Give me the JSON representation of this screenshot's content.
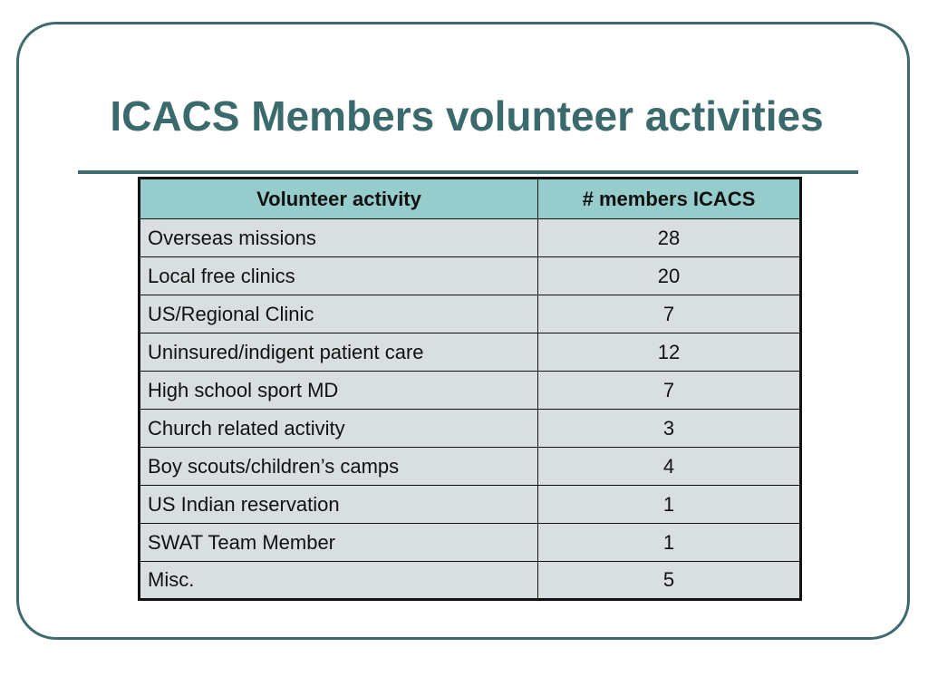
{
  "slide": {
    "title": "ICACS Members volunteer activities"
  },
  "table": {
    "headers": [
      "Volunteer activity",
      "# members ICACS"
    ],
    "rows": [
      {
        "activity": "Overseas missions",
        "members": "28"
      },
      {
        "activity": "Local free clinics",
        "members": "20"
      },
      {
        "activity": "US/Regional Clinic",
        "members": "7"
      },
      {
        "activity": "Uninsured/indigent patient care",
        "members": "12"
      },
      {
        "activity": "High school sport MD",
        "members": "7"
      },
      {
        "activity": "Church related activity",
        "members": "3"
      },
      {
        "activity": "Boy scouts/children’s camps",
        "members": "4"
      },
      {
        "activity": "US Indian reservation",
        "members": "1"
      },
      {
        "activity": "SWAT Team Member",
        "members": "1"
      },
      {
        "activity": "Misc.",
        "members": "5"
      }
    ]
  },
  "colors": {
    "title": "#3a6a6c",
    "frame": "#3f6a6d",
    "header_fill": "#96cccb",
    "cell_fill": "#d9dfe1"
  }
}
